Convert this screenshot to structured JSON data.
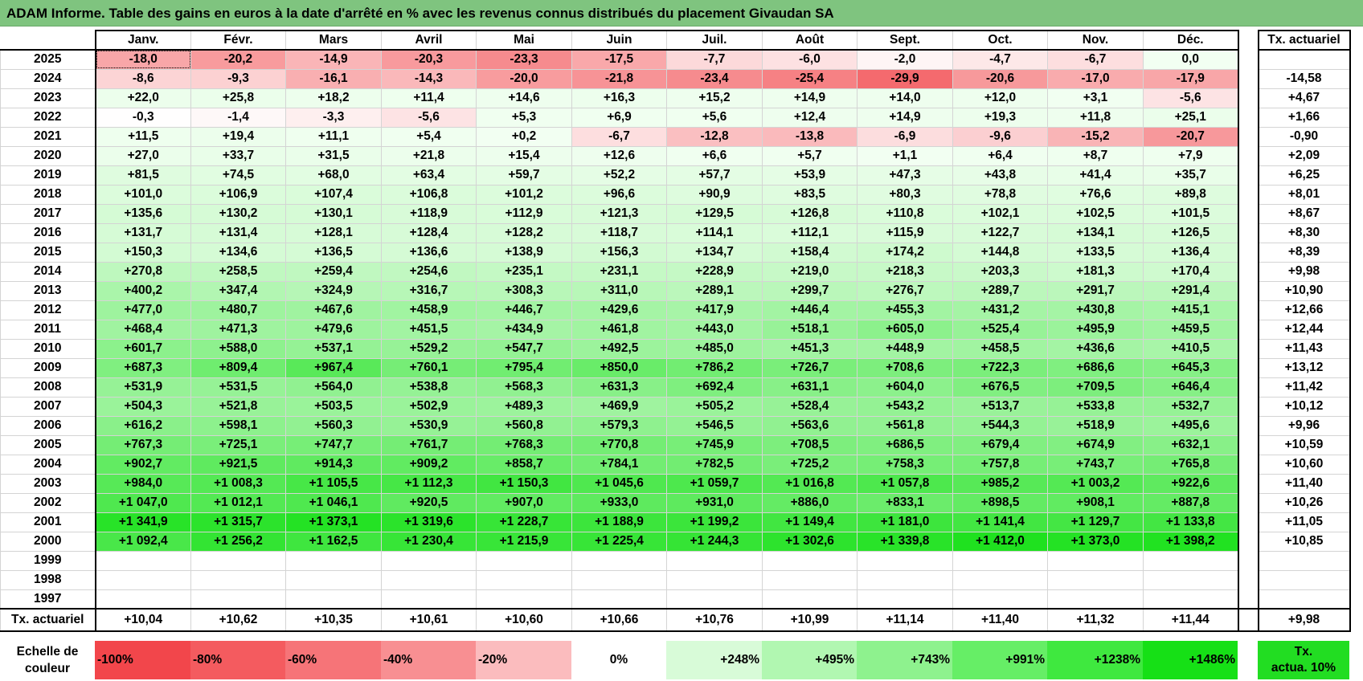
{
  "title": "ADAM Informe. Table des gains en euros à la date d'arrêté en % avec les revenus connus distribués du placement Givaudan SA",
  "months": [
    "Janv.",
    "Févr.",
    "Mars",
    "Avril",
    "Mai",
    "Juin",
    "Juil.",
    "Août",
    "Sept.",
    "Oct.",
    "Nov.",
    "Déc."
  ],
  "tx_header": "Tx. actuariel",
  "rows": [
    {
      "year": "2025",
      "values": [
        "-18,0",
        "-20,2",
        "-14,9",
        "-20,3",
        "-23,3",
        "-17,5",
        "-7,7",
        "-6,0",
        "-2,0",
        "-4,7",
        "-6,7",
        "0,0"
      ],
      "tx": ""
    },
    {
      "year": "2024",
      "values": [
        "-8,6",
        "-9,3",
        "-16,1",
        "-14,3",
        "-20,0",
        "-21,8",
        "-23,4",
        "-25,4",
        "-29,9",
        "-20,6",
        "-17,0",
        "-17,9"
      ],
      "tx": "-14,58"
    },
    {
      "year": "2023",
      "values": [
        "+22,0",
        "+25,8",
        "+18,2",
        "+11,4",
        "+14,6",
        "+16,3",
        "+15,2",
        "+14,9",
        "+14,0",
        "+12,0",
        "+3,1",
        "-5,6"
      ],
      "tx": "+4,67"
    },
    {
      "year": "2022",
      "values": [
        "-0,3",
        "-1,4",
        "-3,3",
        "-5,6",
        "+5,3",
        "+6,9",
        "+5,6",
        "+12,4",
        "+14,9",
        "+19,3",
        "+11,8",
        "+25,1"
      ],
      "tx": "+1,66"
    },
    {
      "year": "2021",
      "values": [
        "+11,5",
        "+19,4",
        "+11,1",
        "+5,4",
        "+0,2",
        "-6,7",
        "-12,8",
        "-13,8",
        "-6,9",
        "-9,6",
        "-15,2",
        "-20,7"
      ],
      "tx": "-0,90"
    },
    {
      "year": "2020",
      "values": [
        "+27,0",
        "+33,7",
        "+31,5",
        "+21,8",
        "+15,4",
        "+12,6",
        "+6,6",
        "+5,7",
        "+1,1",
        "+6,4",
        "+8,7",
        "+7,9"
      ],
      "tx": "+2,09"
    },
    {
      "year": "2019",
      "values": [
        "+81,5",
        "+74,5",
        "+68,0",
        "+63,4",
        "+59,7",
        "+52,2",
        "+57,7",
        "+53,9",
        "+47,3",
        "+43,8",
        "+41,4",
        "+35,7"
      ],
      "tx": "+6,25"
    },
    {
      "year": "2018",
      "values": [
        "+101,0",
        "+106,9",
        "+107,4",
        "+106,8",
        "+101,2",
        "+96,6",
        "+90,9",
        "+83,5",
        "+80,3",
        "+78,8",
        "+76,6",
        "+89,8"
      ],
      "tx": "+8,01"
    },
    {
      "year": "2017",
      "values": [
        "+135,6",
        "+130,2",
        "+130,1",
        "+118,9",
        "+112,9",
        "+121,3",
        "+129,5",
        "+126,8",
        "+110,8",
        "+102,1",
        "+102,5",
        "+101,5"
      ],
      "tx": "+8,67"
    },
    {
      "year": "2016",
      "values": [
        "+131,7",
        "+131,4",
        "+128,1",
        "+128,4",
        "+128,2",
        "+118,7",
        "+114,1",
        "+112,1",
        "+115,9",
        "+122,7",
        "+134,1",
        "+126,5"
      ],
      "tx": "+8,30"
    },
    {
      "year": "2015",
      "values": [
        "+150,3",
        "+134,6",
        "+136,5",
        "+136,6",
        "+138,9",
        "+156,3",
        "+134,7",
        "+158,4",
        "+174,2",
        "+144,8",
        "+133,5",
        "+136,4"
      ],
      "tx": "+8,39"
    },
    {
      "year": "2014",
      "values": [
        "+270,8",
        "+258,5",
        "+259,4",
        "+254,6",
        "+235,1",
        "+231,1",
        "+228,9",
        "+219,0",
        "+218,3",
        "+203,3",
        "+181,3",
        "+170,4"
      ],
      "tx": "+9,98"
    },
    {
      "year": "2013",
      "values": [
        "+400,2",
        "+347,4",
        "+324,9",
        "+316,7",
        "+308,3",
        "+311,0",
        "+289,1",
        "+299,7",
        "+276,7",
        "+289,7",
        "+291,7",
        "+291,4"
      ],
      "tx": "+10,90"
    },
    {
      "year": "2012",
      "values": [
        "+477,0",
        "+480,7",
        "+467,6",
        "+458,9",
        "+446,7",
        "+429,6",
        "+417,9",
        "+446,4",
        "+455,3",
        "+431,2",
        "+430,8",
        "+415,1"
      ],
      "tx": "+12,66"
    },
    {
      "year": "2011",
      "values": [
        "+468,4",
        "+471,3",
        "+479,6",
        "+451,5",
        "+434,9",
        "+461,8",
        "+443,0",
        "+518,1",
        "+605,0",
        "+525,4",
        "+495,9",
        "+459,5"
      ],
      "tx": "+12,44"
    },
    {
      "year": "2010",
      "values": [
        "+601,7",
        "+588,0",
        "+537,1",
        "+529,2",
        "+547,7",
        "+492,5",
        "+485,0",
        "+451,3",
        "+448,9",
        "+458,5",
        "+436,6",
        "+410,5"
      ],
      "tx": "+11,43"
    },
    {
      "year": "2009",
      "values": [
        "+687,3",
        "+809,4",
        "+967,4",
        "+760,1",
        "+795,4",
        "+850,0",
        "+786,2",
        "+726,7",
        "+708,6",
        "+722,3",
        "+686,6",
        "+645,3"
      ],
      "tx": "+13,12"
    },
    {
      "year": "2008",
      "values": [
        "+531,9",
        "+531,5",
        "+564,0",
        "+538,8",
        "+568,3",
        "+631,3",
        "+692,4",
        "+631,1",
        "+604,0",
        "+676,5",
        "+709,5",
        "+646,4"
      ],
      "tx": "+11,42"
    },
    {
      "year": "2007",
      "values": [
        "+504,3",
        "+521,8",
        "+503,5",
        "+502,9",
        "+489,3",
        "+469,9",
        "+505,2",
        "+528,4",
        "+543,2",
        "+513,7",
        "+533,8",
        "+532,7"
      ],
      "tx": "+10,12"
    },
    {
      "year": "2006",
      "values": [
        "+616,2",
        "+598,1",
        "+560,3",
        "+530,9",
        "+560,8",
        "+579,3",
        "+546,5",
        "+563,6",
        "+561,8",
        "+544,3",
        "+518,9",
        "+495,6"
      ],
      "tx": "+9,96"
    },
    {
      "year": "2005",
      "values": [
        "+767,3",
        "+725,1",
        "+747,7",
        "+761,7",
        "+768,3",
        "+770,8",
        "+745,9",
        "+708,5",
        "+686,5",
        "+679,4",
        "+674,9",
        "+632,1"
      ],
      "tx": "+10,59"
    },
    {
      "year": "2004",
      "values": [
        "+902,7",
        "+921,5",
        "+914,3",
        "+909,2",
        "+858,7",
        "+784,1",
        "+782,5",
        "+725,2",
        "+758,3",
        "+757,8",
        "+743,7",
        "+765,8"
      ],
      "tx": "+10,60"
    },
    {
      "year": "2003",
      "values": [
        "+984,0",
        "+1 008,3",
        "+1 105,5",
        "+1 112,3",
        "+1 150,3",
        "+1 045,6",
        "+1 059,7",
        "+1 016,8",
        "+1 057,8",
        "+985,2",
        "+1 003,2",
        "+922,6"
      ],
      "tx": "+11,40"
    },
    {
      "year": "2002",
      "values": [
        "+1 047,0",
        "+1 012,1",
        "+1 046,1",
        "+920,5",
        "+907,0",
        "+933,0",
        "+931,0",
        "+886,0",
        "+833,1",
        "+898,5",
        "+908,1",
        "+887,8"
      ],
      "tx": "+10,26"
    },
    {
      "year": "2001",
      "values": [
        "+1 341,9",
        "+1 315,7",
        "+1 373,1",
        "+1 319,6",
        "+1 228,7",
        "+1 188,9",
        "+1 199,2",
        "+1 149,4",
        "+1 181,0",
        "+1 141,4",
        "+1 129,7",
        "+1 133,8"
      ],
      "tx": "+11,05"
    },
    {
      "year": "2000",
      "values": [
        "+1 092,4",
        "+1 256,2",
        "+1 162,5",
        "+1 230,4",
        "+1 215,9",
        "+1 225,4",
        "+1 244,3",
        "+1 302,6",
        "+1 339,8",
        "+1 412,0",
        "+1 373,0",
        "+1 398,2"
      ],
      "tx": "+10,85"
    },
    {
      "year": "1999",
      "values": [
        "",
        "",
        "",
        "",
        "",
        "",
        "",
        "",
        "",
        "",
        "",
        ""
      ],
      "tx": ""
    },
    {
      "year": "1998",
      "values": [
        "",
        "",
        "",
        "",
        "",
        "",
        "",
        "",
        "",
        "",
        "",
        ""
      ],
      "tx": ""
    },
    {
      "year": "1997",
      "values": [
        "",
        "",
        "",
        "",
        "",
        "",
        "",
        "",
        "",
        "",
        "",
        ""
      ],
      "tx": ""
    }
  ],
  "footer": {
    "label": "Tx. actuariel",
    "values": [
      "+10,04",
      "+10,62",
      "+10,35",
      "+10,61",
      "+10,60",
      "+10,66",
      "+10,76",
      "+10,99",
      "+11,14",
      "+11,40",
      "+11,32",
      "+11,44"
    ],
    "tx": "+9,98"
  },
  "scale": {
    "label_line1": "Echelle de",
    "label_line2": "couleur",
    "steps": [
      {
        "label": "-100%",
        "color": "#f2464b"
      },
      {
        "label": "-80%",
        "color": "#f45b5f"
      },
      {
        "label": "-60%",
        "color": "#f67478"
      },
      {
        "label": "-40%",
        "color": "#f88f92"
      },
      {
        "label": "-20%",
        "color": "#fbbcbe"
      },
      {
        "label": "0%",
        "color": "#ffffff"
      },
      {
        "label": "+248%",
        "color": "#d8fbd8"
      },
      {
        "label": "+495%",
        "color": "#b1f7b1"
      },
      {
        "label": "+743%",
        "color": "#8ef28e"
      },
      {
        "label": "+991%",
        "color": "#66ee66"
      },
      {
        "label": "+1238%",
        "color": "#3fe83f"
      },
      {
        "label": "+1486%",
        "color": "#16e016"
      }
    ],
    "tx_line1": "Tx.",
    "tx_line2": "actua. 10%",
    "tx_color": "#22dd22"
  }
}
